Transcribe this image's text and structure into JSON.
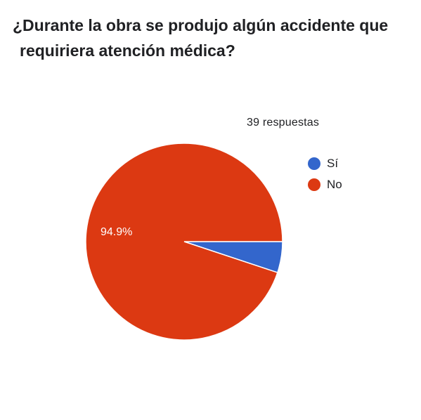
{
  "chart_data": {
    "type": "pie",
    "title_line1": "¿Durante la obra se produjo algún accidente que",
    "title_line2": "requiriera atención médica?",
    "responses_label": "39 respuestas",
    "legend_position": "right",
    "slices": [
      {
        "label": "Sí",
        "value": 5.1,
        "color": "#3366cc"
      },
      {
        "label": "No",
        "value": 94.9,
        "color": "#dc3912",
        "data_label": "94.9%"
      }
    ]
  }
}
